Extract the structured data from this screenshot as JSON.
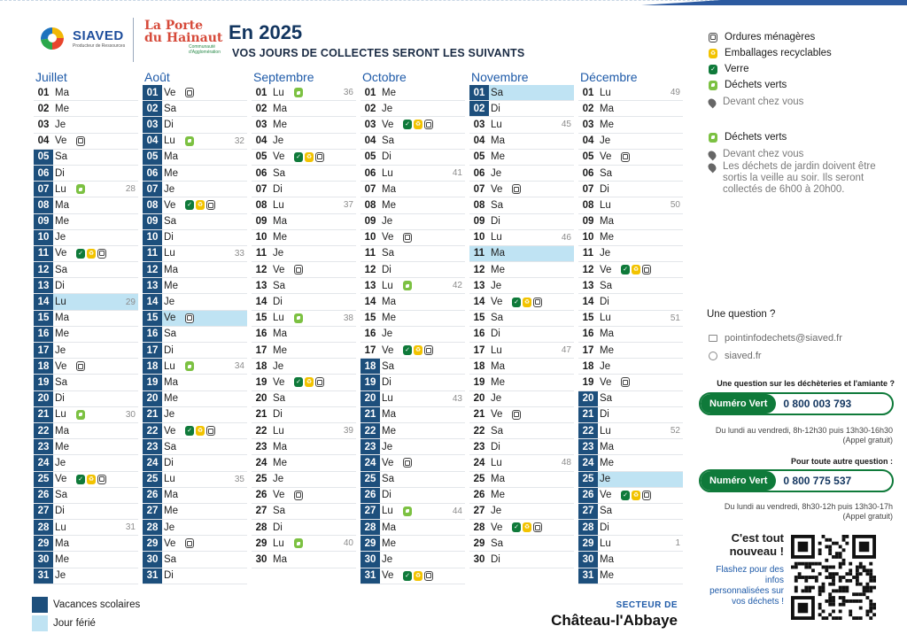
{
  "header": {
    "siaved_name": "SIAVED",
    "siaved_sub": "Producteur de Ressources",
    "porte_line1": "La Porte",
    "porte_line2": "du Hainaut",
    "porte_line3": "Communauté d'Agglomération",
    "title": "En 2025",
    "subtitle": "VOS JOURS DE COLLECTES SERONT LES SUIVANTS"
  },
  "colors": {
    "vacances": "#1d4f7c",
    "ferie": "#bfe3f3",
    "month_title": "#1e5aa8",
    "verre": "#0f7a3a",
    "emballages": "#f2c300",
    "dechets_verts": "#7cc142"
  },
  "legend": {
    "items": [
      {
        "icon": "om",
        "label": "Ordures ménagères"
      },
      {
        "icon": "er",
        "label": "Emballages recyclables"
      },
      {
        "icon": "vr",
        "label": "Verre"
      },
      {
        "icon": "dv",
        "label": "Déchets verts"
      }
    ],
    "pin_label": "Devant chez vous",
    "dv_label": "Déchets verts",
    "dv_pin_label": "Devant chez vous",
    "dv_note": "Les déchets de jardin doivent être sortis la veille au soir. Ils seront collectés de 6h00 à 20h00."
  },
  "contact": {
    "question": "Une question ?",
    "email": "pointinfodechets@siaved.fr",
    "site": "siaved.fr",
    "dech_question": "Une question sur les déchèteries et l'amiante ?",
    "nv_label_1": "Numéro Vert",
    "nv_num_1": "0 800 003 793",
    "hours_1a": "Du lundi au vendredi, 8h-12h30 puis 13h30-16h30",
    "hours_1b": "(Appel gratuit)",
    "other_question": "Pour toute autre question :",
    "nv_label_2": "Numéro Vert",
    "nv_num_2": "0 800 775 537",
    "hours_2a": "Du lundi au vendredi, 8h30-12h puis 13h30-17h",
    "hours_2b": "(Appel gratuit)",
    "nouveau_1": "C'est tout",
    "nouveau_2": "nouveau !",
    "nouveau_3": "Flashez pour des infos personnalisées sur vos déchets !"
  },
  "bottom": {
    "vacances_label": "Vacances scolaires",
    "ferie_label": "Jour férié",
    "secteur_label": "SECTEUR DE",
    "secteur_name": "Château-l'Abbaye"
  },
  "months": [
    {
      "name": "Juillet",
      "days": [
        {
          "n": "01",
          "d": "Ma"
        },
        {
          "n": "02",
          "d": "Me"
        },
        {
          "n": "03",
          "d": "Je"
        },
        {
          "n": "04",
          "d": "Ve",
          "i": [
            "om"
          ]
        },
        {
          "n": "05",
          "d": "Sa",
          "v": 1
        },
        {
          "n": "06",
          "d": "Di",
          "v": 1
        },
        {
          "n": "07",
          "d": "Lu",
          "i": [
            "dv"
          ],
          "w": "28",
          "v": 1
        },
        {
          "n": "08",
          "d": "Ma",
          "v": 1
        },
        {
          "n": "09",
          "d": "Me",
          "v": 1
        },
        {
          "n": "10",
          "d": "Je",
          "v": 1
        },
        {
          "n": "11",
          "d": "Ve",
          "i": [
            "vr",
            "er",
            "om"
          ],
          "v": 1
        },
        {
          "n": "12",
          "d": "Sa",
          "v": 1
        },
        {
          "n": "13",
          "d": "Di",
          "v": 1
        },
        {
          "n": "14",
          "d": "Lu",
          "w": "29",
          "v": 1,
          "h": 1
        },
        {
          "n": "15",
          "d": "Ma",
          "v": 1
        },
        {
          "n": "16",
          "d": "Me",
          "v": 1
        },
        {
          "n": "17",
          "d": "Je",
          "v": 1
        },
        {
          "n": "18",
          "d": "Ve",
          "i": [
            "om"
          ],
          "v": 1
        },
        {
          "n": "19",
          "d": "Sa",
          "v": 1
        },
        {
          "n": "20",
          "d": "Di",
          "v": 1
        },
        {
          "n": "21",
          "d": "Lu",
          "i": [
            "dv"
          ],
          "w": "30",
          "v": 1
        },
        {
          "n": "22",
          "d": "Ma",
          "v": 1
        },
        {
          "n": "23",
          "d": "Me",
          "v": 1
        },
        {
          "n": "24",
          "d": "Je",
          "v": 1
        },
        {
          "n": "25",
          "d": "Ve",
          "i": [
            "vr",
            "er",
            "om"
          ],
          "v": 1
        },
        {
          "n": "26",
          "d": "Sa",
          "v": 1
        },
        {
          "n": "27",
          "d": "Di",
          "v": 1
        },
        {
          "n": "28",
          "d": "Lu",
          "w": "31",
          "v": 1
        },
        {
          "n": "29",
          "d": "Ma",
          "v": 1
        },
        {
          "n": "30",
          "d": "Me",
          "v": 1
        },
        {
          "n": "31",
          "d": "Je",
          "v": 1
        }
      ]
    },
    {
      "name": "Août",
      "days": [
        {
          "n": "01",
          "d": "Ve",
          "i": [
            "om"
          ],
          "v": 1
        },
        {
          "n": "02",
          "d": "Sa",
          "v": 1
        },
        {
          "n": "03",
          "d": "Di",
          "v": 1
        },
        {
          "n": "04",
          "d": "Lu",
          "i": [
            "dv"
          ],
          "w": "32",
          "v": 1
        },
        {
          "n": "05",
          "d": "Ma",
          "v": 1
        },
        {
          "n": "06",
          "d": "Me",
          "v": 1
        },
        {
          "n": "07",
          "d": "Je",
          "v": 1
        },
        {
          "n": "08",
          "d": "Ve",
          "i": [
            "vr",
            "er",
            "om"
          ],
          "v": 1
        },
        {
          "n": "09",
          "d": "Sa",
          "v": 1
        },
        {
          "n": "10",
          "d": "Di",
          "v": 1
        },
        {
          "n": "11",
          "d": "Lu",
          "w": "33",
          "v": 1
        },
        {
          "n": "12",
          "d": "Ma",
          "v": 1
        },
        {
          "n": "13",
          "d": "Me",
          "v": 1
        },
        {
          "n": "14",
          "d": "Je",
          "v": 1
        },
        {
          "n": "15",
          "d": "Ve",
          "i": [
            "om"
          ],
          "v": 1,
          "h": 1
        },
        {
          "n": "16",
          "d": "Sa",
          "v": 1
        },
        {
          "n": "17",
          "d": "Di",
          "v": 1
        },
        {
          "n": "18",
          "d": "Lu",
          "i": [
            "dv"
          ],
          "w": "34",
          "v": 1
        },
        {
          "n": "19",
          "d": "Ma",
          "v": 1
        },
        {
          "n": "20",
          "d": "Me",
          "v": 1
        },
        {
          "n": "21",
          "d": "Je",
          "v": 1
        },
        {
          "n": "22",
          "d": "Ve",
          "i": [
            "vr",
            "er",
            "om"
          ],
          "v": 1
        },
        {
          "n": "23",
          "d": "Sa",
          "v": 1
        },
        {
          "n": "24",
          "d": "Di",
          "v": 1
        },
        {
          "n": "25",
          "d": "Lu",
          "w": "35",
          "v": 1
        },
        {
          "n": "26",
          "d": "Ma",
          "v": 1
        },
        {
          "n": "27",
          "d": "Me",
          "v": 1
        },
        {
          "n": "28",
          "d": "Je",
          "v": 1
        },
        {
          "n": "29",
          "d": "Ve",
          "i": [
            "om"
          ],
          "v": 1
        },
        {
          "n": "30",
          "d": "Sa",
          "v": 1
        },
        {
          "n": "31",
          "d": "Di",
          "v": 1
        }
      ]
    },
    {
      "name": "Septembre",
      "days": [
        {
          "n": "01",
          "d": "Lu",
          "i": [
            "dv"
          ],
          "w": "36"
        },
        {
          "n": "02",
          "d": "Ma"
        },
        {
          "n": "03",
          "d": "Me"
        },
        {
          "n": "04",
          "d": "Je"
        },
        {
          "n": "05",
          "d": "Ve",
          "i": [
            "vr",
            "er",
            "om"
          ]
        },
        {
          "n": "06",
          "d": "Sa"
        },
        {
          "n": "07",
          "d": "Di"
        },
        {
          "n": "08",
          "d": "Lu",
          "w": "37"
        },
        {
          "n": "09",
          "d": "Ma"
        },
        {
          "n": "10",
          "d": "Me"
        },
        {
          "n": "11",
          "d": "Je"
        },
        {
          "n": "12",
          "d": "Ve",
          "i": [
            "om"
          ]
        },
        {
          "n": "13",
          "d": "Sa"
        },
        {
          "n": "14",
          "d": "Di"
        },
        {
          "n": "15",
          "d": "Lu",
          "i": [
            "dv"
          ],
          "w": "38"
        },
        {
          "n": "16",
          "d": "Ma"
        },
        {
          "n": "17",
          "d": "Me"
        },
        {
          "n": "18",
          "d": "Je"
        },
        {
          "n": "19",
          "d": "Ve",
          "i": [
            "vr",
            "er",
            "om"
          ]
        },
        {
          "n": "20",
          "d": "Sa"
        },
        {
          "n": "21",
          "d": "Di"
        },
        {
          "n": "22",
          "d": "Lu",
          "w": "39"
        },
        {
          "n": "23",
          "d": "Ma"
        },
        {
          "n": "24",
          "d": "Me"
        },
        {
          "n": "25",
          "d": "Je"
        },
        {
          "n": "26",
          "d": "Ve",
          "i": [
            "om"
          ]
        },
        {
          "n": "27",
          "d": "Sa"
        },
        {
          "n": "28",
          "d": "Di"
        },
        {
          "n": "29",
          "d": "Lu",
          "i": [
            "dv"
          ],
          "w": "40"
        },
        {
          "n": "30",
          "d": "Ma"
        }
      ]
    },
    {
      "name": "Octobre",
      "days": [
        {
          "n": "01",
          "d": "Me"
        },
        {
          "n": "02",
          "d": "Je"
        },
        {
          "n": "03",
          "d": "Ve",
          "i": [
            "vr",
            "er",
            "om"
          ]
        },
        {
          "n": "04",
          "d": "Sa"
        },
        {
          "n": "05",
          "d": "Di"
        },
        {
          "n": "06",
          "d": "Lu",
          "w": "41"
        },
        {
          "n": "07",
          "d": "Ma"
        },
        {
          "n": "08",
          "d": "Me"
        },
        {
          "n": "09",
          "d": "Je"
        },
        {
          "n": "10",
          "d": "Ve",
          "i": [
            "om"
          ]
        },
        {
          "n": "11",
          "d": "Sa"
        },
        {
          "n": "12",
          "d": "Di"
        },
        {
          "n": "13",
          "d": "Lu",
          "i": [
            "dv"
          ],
          "w": "42"
        },
        {
          "n": "14",
          "d": "Ma"
        },
        {
          "n": "15",
          "d": "Me"
        },
        {
          "n": "16",
          "d": "Je"
        },
        {
          "n": "17",
          "d": "Ve",
          "i": [
            "vr",
            "er",
            "om"
          ]
        },
        {
          "n": "18",
          "d": "Sa",
          "v": 1
        },
        {
          "n": "19",
          "d": "Di",
          "v": 1
        },
        {
          "n": "20",
          "d": "Lu",
          "w": "43",
          "v": 1
        },
        {
          "n": "21",
          "d": "Ma",
          "v": 1
        },
        {
          "n": "22",
          "d": "Me",
          "v": 1
        },
        {
          "n": "23",
          "d": "Je",
          "v": 1
        },
        {
          "n": "24",
          "d": "Ve",
          "i": [
            "om"
          ],
          "v": 1
        },
        {
          "n": "25",
          "d": "Sa",
          "v": 1
        },
        {
          "n": "26",
          "d": "Di",
          "v": 1
        },
        {
          "n": "27",
          "d": "Lu",
          "i": [
            "dv"
          ],
          "w": "44",
          "v": 1
        },
        {
          "n": "28",
          "d": "Ma",
          "v": 1
        },
        {
          "n": "29",
          "d": "Me",
          "v": 1
        },
        {
          "n": "30",
          "d": "Je",
          "v": 1
        },
        {
          "n": "31",
          "d": "Ve",
          "i": [
            "vr",
            "er",
            "om"
          ],
          "v": 1
        }
      ]
    },
    {
      "name": "Novembre",
      "days": [
        {
          "n": "01",
          "d": "Sa",
          "v": 1,
          "h": 1
        },
        {
          "n": "02",
          "d": "Di",
          "v": 1
        },
        {
          "n": "03",
          "d": "Lu",
          "w": "45"
        },
        {
          "n": "04",
          "d": "Ma"
        },
        {
          "n": "05",
          "d": "Me"
        },
        {
          "n": "06",
          "d": "Je"
        },
        {
          "n": "07",
          "d": "Ve",
          "i": [
            "om"
          ]
        },
        {
          "n": "08",
          "d": "Sa"
        },
        {
          "n": "09",
          "d": "Di"
        },
        {
          "n": "10",
          "d": "Lu",
          "w": "46"
        },
        {
          "n": "11",
          "d": "Ma",
          "h": 1
        },
        {
          "n": "12",
          "d": "Me"
        },
        {
          "n": "13",
          "d": "Je"
        },
        {
          "n": "14",
          "d": "Ve",
          "i": [
            "vr",
            "er",
            "om"
          ]
        },
        {
          "n": "15",
          "d": "Sa"
        },
        {
          "n": "16",
          "d": "Di"
        },
        {
          "n": "17",
          "d": "Lu",
          "w": "47"
        },
        {
          "n": "18",
          "d": "Ma"
        },
        {
          "n": "19",
          "d": "Me"
        },
        {
          "n": "20",
          "d": "Je"
        },
        {
          "n": "21",
          "d": "Ve",
          "i": [
            "om"
          ]
        },
        {
          "n": "22",
          "d": "Sa"
        },
        {
          "n": "23",
          "d": "Di"
        },
        {
          "n": "24",
          "d": "Lu",
          "w": "48"
        },
        {
          "n": "25",
          "d": "Ma"
        },
        {
          "n": "26",
          "d": "Me"
        },
        {
          "n": "27",
          "d": "Je"
        },
        {
          "n": "28",
          "d": "Ve",
          "i": [
            "vr",
            "er",
            "om"
          ]
        },
        {
          "n": "29",
          "d": "Sa"
        },
        {
          "n": "30",
          "d": "Di"
        }
      ]
    },
    {
      "name": "Décembre",
      "days": [
        {
          "n": "01",
          "d": "Lu",
          "w": "49"
        },
        {
          "n": "02",
          "d": "Ma"
        },
        {
          "n": "03",
          "d": "Me"
        },
        {
          "n": "04",
          "d": "Je"
        },
        {
          "n": "05",
          "d": "Ve",
          "i": [
            "om"
          ]
        },
        {
          "n": "06",
          "d": "Sa"
        },
        {
          "n": "07",
          "d": "Di"
        },
        {
          "n": "08",
          "d": "Lu",
          "w": "50"
        },
        {
          "n": "09",
          "d": "Ma"
        },
        {
          "n": "10",
          "d": "Me"
        },
        {
          "n": "11",
          "d": "Je"
        },
        {
          "n": "12",
          "d": "Ve",
          "i": [
            "vr",
            "er",
            "om"
          ]
        },
        {
          "n": "13",
          "d": "Sa"
        },
        {
          "n": "14",
          "d": "Di"
        },
        {
          "n": "15",
          "d": "Lu",
          "w": "51"
        },
        {
          "n": "16",
          "d": "Ma"
        },
        {
          "n": "17",
          "d": "Me"
        },
        {
          "n": "18",
          "d": "Je"
        },
        {
          "n": "19",
          "d": "Ve",
          "i": [
            "om"
          ]
        },
        {
          "n": "20",
          "d": "Sa",
          "v": 1
        },
        {
          "n": "21",
          "d": "Di",
          "v": 1
        },
        {
          "n": "22",
          "d": "Lu",
          "w": "52",
          "v": 1
        },
        {
          "n": "23",
          "d": "Ma",
          "v": 1
        },
        {
          "n": "24",
          "d": "Me",
          "v": 1
        },
        {
          "n": "25",
          "d": "Je",
          "v": 1,
          "h": 1
        },
        {
          "n": "26",
          "d": "Ve",
          "i": [
            "vr",
            "er",
            "om"
          ],
          "v": 1
        },
        {
          "n": "27",
          "d": "Sa",
          "v": 1
        },
        {
          "n": "28",
          "d": "Di",
          "v": 1
        },
        {
          "n": "29",
          "d": "Lu",
          "w": "1",
          "v": 1
        },
        {
          "n": "30",
          "d": "Ma",
          "v": 1
        },
        {
          "n": "31",
          "d": "Me",
          "v": 1
        }
      ]
    }
  ]
}
